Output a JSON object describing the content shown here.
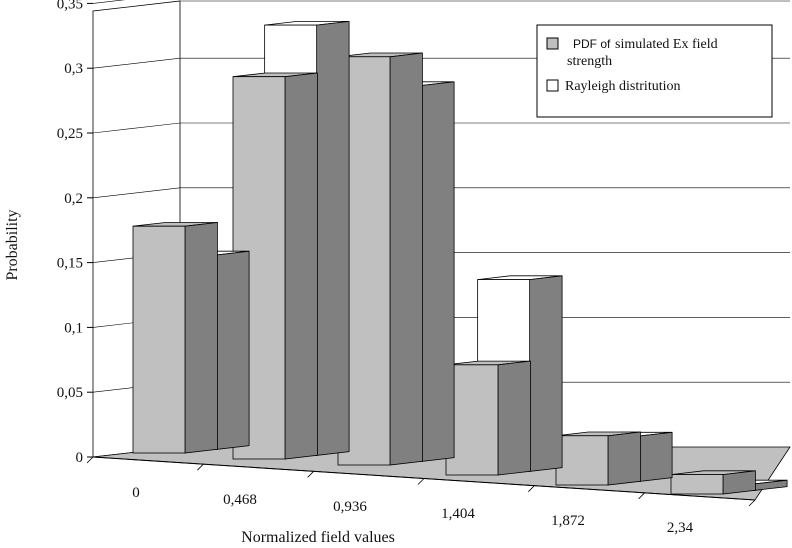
{
  "chart_data": {
    "type": "bar",
    "style": "3d-clustered-columns",
    "categories": [
      "0",
      "0,468",
      "0,936",
      "1,404",
      "1,872",
      "2,34"
    ],
    "series": [
      {
        "name_parts": [
          "PDF of",
          "simulated Ex field",
          "strength"
        ],
        "values": [
          0.175,
          0.295,
          0.315,
          0.085,
          0.038,
          0.015
        ],
        "color": "#c0c0c0"
      },
      {
        "name": "Rayleigh distritution",
        "values": [
          0.15,
          0.332,
          0.29,
          0.148,
          0.035,
          0.005
        ],
        "color": "#ffffff"
      }
    ],
    "y_ticks": [
      "0",
      "0,05",
      "0,1",
      "0,15",
      "0,2",
      "0,25",
      "0,3",
      "0,35"
    ],
    "ylim": [
      0,
      0.35
    ],
    "xlabel": "Normalized field values",
    "ylabel": "Probability",
    "grid": true,
    "legend_position": "top-right",
    "floor_color": "#c0c0c0",
    "side_color": "#808080"
  }
}
